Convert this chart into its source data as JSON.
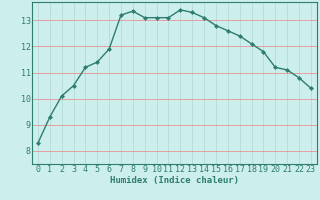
{
  "x": [
    0,
    1,
    2,
    3,
    4,
    5,
    6,
    7,
    8,
    9,
    10,
    11,
    12,
    13,
    14,
    15,
    16,
    17,
    18,
    19,
    20,
    21,
    22,
    23
  ],
  "y": [
    8.3,
    9.3,
    10.1,
    10.5,
    11.2,
    11.4,
    11.9,
    13.2,
    13.35,
    13.1,
    13.1,
    13.1,
    13.4,
    13.3,
    13.1,
    12.8,
    12.6,
    12.4,
    12.1,
    11.8,
    11.2,
    11.1,
    10.8,
    10.4
  ],
  "line_color": "#2e7d6e",
  "marker": "D",
  "marker_size": 2.0,
  "bg_color": "#cceeed",
  "grid_color_h": "#f08080",
  "grid_color_v": "#b0d8d5",
  "xlabel": "Humidex (Indice chaleur)",
  "xlim": [
    -0.5,
    23.5
  ],
  "ylim": [
    7.5,
    13.7
  ],
  "yticks": [
    8,
    9,
    10,
    11,
    12,
    13
  ],
  "xticks": [
    0,
    1,
    2,
    3,
    4,
    5,
    6,
    7,
    8,
    9,
    10,
    11,
    12,
    13,
    14,
    15,
    16,
    17,
    18,
    19,
    20,
    21,
    22,
    23
  ],
  "xlabel_fontsize": 6.5,
  "tick_fontsize": 6.0,
  "line_width": 1.0
}
